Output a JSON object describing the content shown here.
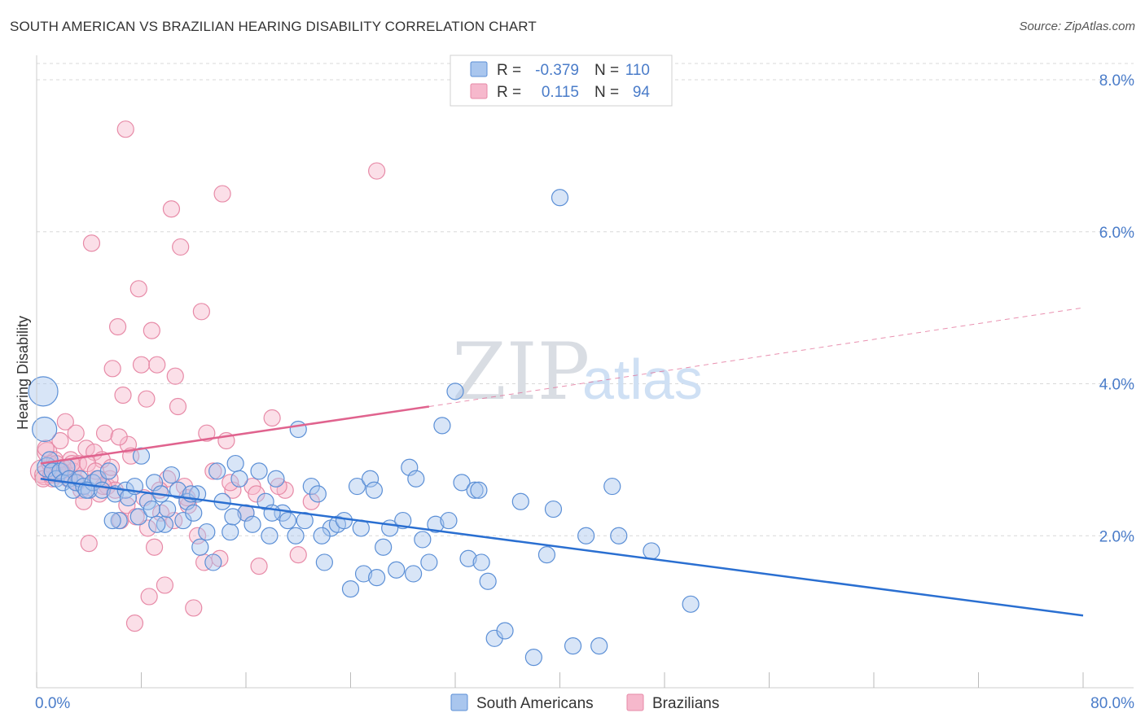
{
  "title": "SOUTH AMERICAN VS BRAZILIAN HEARING DISABILITY CORRELATION CHART",
  "source": "Source: ZipAtlas.com",
  "watermark": {
    "zip": "ZIP",
    "atlas": "atlas"
  },
  "colors": {
    "blue_fill": "#a9c6ee",
    "blue_stroke": "#5b8fd6",
    "blue_line": "#2a6fd1",
    "pink_fill": "#f6b8cc",
    "pink_stroke": "#e78aa7",
    "pink_line": "#e0638e",
    "grid": "#d8d8d8",
    "axis_text": "#4a7cc9"
  },
  "legend_stats": [
    {
      "r_label": "R =",
      "r_value": "-0.379",
      "n_label": "N =",
      "n_value": "110"
    },
    {
      "r_label": "R =",
      "r_value": "0.115",
      "n_label": "N =",
      "n_value": "94"
    }
  ],
  "chart_data": {
    "type": "scatter",
    "title": "SOUTH AMERICAN VS BRAZILIAN HEARING DISABILITY CORRELATION CHART",
    "xlabel": "",
    "ylabel": "Hearing Disability",
    "xlim": [
      0,
      80
    ],
    "ylim": [
      0,
      8.3
    ],
    "x_tick_labels": [
      "0.0%",
      "80.0%"
    ],
    "y_ticks": [
      2,
      4,
      6,
      8
    ],
    "y_tick_labels": [
      "2.0%",
      "4.0%",
      "6.0%",
      "8.0%"
    ],
    "legend": [
      "South Americans",
      "Brazilians"
    ],
    "grid": true,
    "series": [
      {
        "name": "South Americans",
        "trend": {
          "x0": 0.3,
          "y0": 2.75,
          "x1": 80,
          "y1": 0.95
        },
        "points": [
          [
            0.5,
            3.9,
            18
          ],
          [
            0.6,
            3.4,
            15
          ],
          [
            0.8,
            2.9,
            12
          ],
          [
            1.0,
            3.0,
            10
          ],
          [
            1.2,
            2.85,
            10
          ],
          [
            1.5,
            2.75,
            10
          ],
          [
            1.8,
            2.85,
            10
          ],
          [
            2.0,
            2.7,
            10
          ],
          [
            2.3,
            2.9,
            10
          ],
          [
            2.5,
            2.75,
            10
          ],
          [
            2.8,
            2.6,
            10
          ],
          [
            3.0,
            2.7,
            10
          ],
          [
            3.3,
            2.75,
            10
          ],
          [
            3.6,
            2.65,
            10
          ],
          [
            4.0,
            2.6,
            10
          ],
          [
            4.3,
            2.7,
            10
          ],
          [
            4.7,
            2.75,
            10
          ],
          [
            5.0,
            2.6,
            10
          ],
          [
            5.5,
            2.85,
            10
          ],
          [
            6.0,
            2.55,
            10
          ],
          [
            6.3,
            2.2,
            10
          ],
          [
            6.8,
            2.6,
            10
          ],
          [
            7.0,
            2.5,
            10
          ],
          [
            7.5,
            2.65,
            10
          ],
          [
            7.8,
            2.25,
            10
          ],
          [
            8.0,
            3.05,
            10
          ],
          [
            8.5,
            2.45,
            10
          ],
          [
            8.8,
            2.35,
            10
          ],
          [
            9.0,
            2.7,
            10
          ],
          [
            9.5,
            2.55,
            10
          ],
          [
            9.8,
            2.15,
            10
          ],
          [
            10.0,
            2.35,
            10
          ],
          [
            10.3,
            2.8,
            10
          ],
          [
            10.8,
            2.6,
            10
          ],
          [
            11.2,
            2.2,
            10
          ],
          [
            11.5,
            2.45,
            10
          ],
          [
            12.0,
            2.3,
            10
          ],
          [
            12.3,
            2.55,
            10
          ],
          [
            12.5,
            1.85,
            10
          ],
          [
            13.0,
            2.05,
            10
          ],
          [
            13.5,
            1.65,
            10
          ],
          [
            13.8,
            2.85,
            10
          ],
          [
            14.2,
            2.45,
            10
          ],
          [
            14.8,
            2.05,
            10
          ],
          [
            15.2,
            2.95,
            10
          ],
          [
            15.5,
            2.75,
            10
          ],
          [
            16.0,
            2.3,
            10
          ],
          [
            16.5,
            2.15,
            10
          ],
          [
            17.0,
            2.85,
            10
          ],
          [
            17.5,
            2.45,
            10
          ],
          [
            17.8,
            2.0,
            10
          ],
          [
            18.3,
            2.75,
            10
          ],
          [
            18.8,
            2.3,
            10
          ],
          [
            19.2,
            2.2,
            10
          ],
          [
            19.8,
            2.0,
            10
          ],
          [
            20.0,
            3.4,
            10
          ],
          [
            20.5,
            2.2,
            10
          ],
          [
            21.0,
            2.65,
            10
          ],
          [
            21.5,
            2.55,
            10
          ],
          [
            22.0,
            1.65,
            10
          ],
          [
            22.5,
            2.1,
            10
          ],
          [
            23.0,
            2.15,
            10
          ],
          [
            23.5,
            2.2,
            10
          ],
          [
            24.0,
            1.3,
            10
          ],
          [
            24.5,
            2.65,
            10
          ],
          [
            25.0,
            1.5,
            10
          ],
          [
            25.5,
            2.75,
            10
          ],
          [
            25.8,
            2.6,
            10
          ],
          [
            26.0,
            1.45,
            10
          ],
          [
            26.5,
            1.85,
            10
          ],
          [
            27.0,
            2.1,
            10
          ],
          [
            27.5,
            1.55,
            10
          ],
          [
            28.0,
            2.2,
            10
          ],
          [
            28.5,
            2.9,
            10
          ],
          [
            29.0,
            2.75,
            10
          ],
          [
            29.5,
            1.95,
            10
          ],
          [
            30.0,
            1.65,
            10
          ],
          [
            30.5,
            2.15,
            10
          ],
          [
            31.0,
            3.45,
            10
          ],
          [
            31.5,
            2.2,
            10
          ],
          [
            32.0,
            3.9,
            10
          ],
          [
            32.5,
            2.7,
            10
          ],
          [
            33.0,
            1.7,
            10
          ],
          [
            33.5,
            2.6,
            10
          ],
          [
            34.0,
            1.65,
            10
          ],
          [
            34.5,
            1.4,
            10
          ],
          [
            35.0,
            0.65,
            10
          ],
          [
            35.8,
            0.75,
            10
          ],
          [
            37.0,
            2.45,
            10
          ],
          [
            38.0,
            0.4,
            10
          ],
          [
            39.0,
            1.75,
            10
          ],
          [
            39.5,
            2.35,
            10
          ],
          [
            40.0,
            6.45,
            10
          ],
          [
            41.0,
            0.55,
            10
          ],
          [
            42.0,
            2.0,
            10
          ],
          [
            43.0,
            0.55,
            10
          ],
          [
            44.0,
            2.65,
            10
          ],
          [
            47.0,
            1.8,
            10
          ],
          [
            50.0,
            1.1,
            10
          ],
          [
            3.8,
            2.6,
            10
          ],
          [
            5.8,
            2.2,
            10
          ],
          [
            9.2,
            2.15,
            10
          ],
          [
            11.8,
            2.55,
            10
          ],
          [
            15.0,
            2.25,
            10
          ],
          [
            18.0,
            2.3,
            10
          ],
          [
            21.8,
            2.0,
            10
          ],
          [
            24.8,
            2.1,
            10
          ],
          [
            28.8,
            1.5,
            10
          ],
          [
            33.8,
            2.6,
            10
          ],
          [
            44.5,
            2.0,
            10
          ]
        ]
      },
      {
        "name": "Brazilians",
        "trend": {
          "x0": 0.3,
          "y0": 2.95,
          "x1": 30,
          "y1": 3.7,
          "x2": 80,
          "y2": 5.0
        },
        "points": [
          [
            0.4,
            2.85,
            14
          ],
          [
            0.6,
            2.8,
            12
          ],
          [
            0.8,
            3.1,
            12
          ],
          [
            1.0,
            2.95,
            10
          ],
          [
            1.2,
            2.75,
            10
          ],
          [
            1.4,
            3.0,
            10
          ],
          [
            1.6,
            2.8,
            10
          ],
          [
            1.8,
            3.25,
            10
          ],
          [
            2.0,
            2.9,
            10
          ],
          [
            2.2,
            3.5,
            10
          ],
          [
            2.4,
            2.75,
            10
          ],
          [
            2.6,
            3.0,
            10
          ],
          [
            2.8,
            2.85,
            10
          ],
          [
            3.0,
            3.35,
            10
          ],
          [
            3.2,
            2.95,
            10
          ],
          [
            3.4,
            2.6,
            10
          ],
          [
            3.6,
            2.45,
            10
          ],
          [
            3.8,
            3.15,
            10
          ],
          [
            4.0,
            1.9,
            10
          ],
          [
            4.2,
            5.85,
            10
          ],
          [
            4.4,
            3.1,
            10
          ],
          [
            4.6,
            2.75,
            10
          ],
          [
            4.8,
            2.55,
            10
          ],
          [
            5.0,
            3.0,
            10
          ],
          [
            5.2,
            3.35,
            10
          ],
          [
            5.4,
            2.65,
            10
          ],
          [
            5.6,
            2.75,
            10
          ],
          [
            5.8,
            4.2,
            10
          ],
          [
            6.0,
            2.6,
            10
          ],
          [
            6.2,
            4.75,
            10
          ],
          [
            6.4,
            2.2,
            10
          ],
          [
            6.6,
            3.85,
            10
          ],
          [
            6.8,
            7.35,
            10
          ],
          [
            7.0,
            3.2,
            10
          ],
          [
            7.2,
            3.05,
            10
          ],
          [
            7.5,
            0.85,
            10
          ],
          [
            7.8,
            5.25,
            10
          ],
          [
            8.0,
            4.25,
            10
          ],
          [
            8.2,
            2.5,
            10
          ],
          [
            8.4,
            3.8,
            10
          ],
          [
            8.6,
            1.2,
            10
          ],
          [
            8.8,
            4.7,
            10
          ],
          [
            9.0,
            1.85,
            10
          ],
          [
            9.2,
            4.25,
            10
          ],
          [
            9.5,
            2.3,
            10
          ],
          [
            9.8,
            1.35,
            10
          ],
          [
            10.0,
            2.75,
            10
          ],
          [
            10.3,
            6.3,
            10
          ],
          [
            10.6,
            4.1,
            10
          ],
          [
            10.8,
            3.7,
            10
          ],
          [
            11.0,
            5.8,
            10
          ],
          [
            11.3,
            2.65,
            10
          ],
          [
            11.6,
            2.4,
            10
          ],
          [
            12.0,
            1.05,
            10
          ],
          [
            12.3,
            2.0,
            10
          ],
          [
            12.6,
            4.95,
            10
          ],
          [
            13.0,
            3.35,
            10
          ],
          [
            13.5,
            2.85,
            10
          ],
          [
            14.0,
            1.7,
            10
          ],
          [
            14.2,
            6.5,
            10
          ],
          [
            14.5,
            3.25,
            10
          ],
          [
            15.0,
            2.6,
            10
          ],
          [
            16.0,
            2.3,
            10
          ],
          [
            16.5,
            2.65,
            10
          ],
          [
            17.0,
            1.6,
            10
          ],
          [
            18.0,
            3.55,
            10
          ],
          [
            19.0,
            2.6,
            10
          ],
          [
            20.0,
            1.75,
            10
          ],
          [
            21.0,
            2.45,
            10
          ],
          [
            26.0,
            6.8,
            10
          ],
          [
            0.5,
            2.75,
            10
          ],
          [
            1.1,
            2.8,
            10
          ],
          [
            1.5,
            2.95,
            10
          ],
          [
            2.1,
            2.8,
            10
          ],
          [
            2.7,
            2.95,
            10
          ],
          [
            3.3,
            2.75,
            10
          ],
          [
            3.9,
            2.95,
            10
          ],
          [
            4.5,
            2.85,
            10
          ],
          [
            5.1,
            2.65,
            10
          ],
          [
            5.7,
            2.9,
            10
          ],
          [
            6.3,
            3.3,
            10
          ],
          [
            6.9,
            2.4,
            10
          ],
          [
            7.6,
            2.25,
            10
          ],
          [
            8.5,
            2.1,
            10
          ],
          [
            9.4,
            2.6,
            10
          ],
          [
            10.5,
            2.2,
            10
          ],
          [
            11.5,
            2.5,
            10
          ],
          [
            12.8,
            1.65,
            10
          ],
          [
            14.8,
            2.7,
            10
          ],
          [
            16.8,
            2.55,
            10
          ],
          [
            18.5,
            2.65,
            10
          ],
          [
            0.7,
            3.15,
            10
          ],
          [
            1.9,
            2.85,
            10
          ],
          [
            3.1,
            2.7,
            10
          ]
        ]
      }
    ]
  },
  "bottom_legend": [
    {
      "label": "South Americans"
    },
    {
      "label": "Brazilians"
    }
  ]
}
